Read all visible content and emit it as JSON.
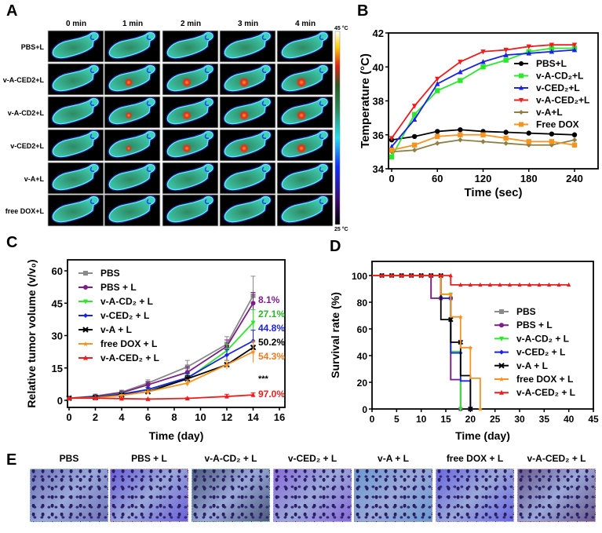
{
  "panel_labels": {
    "a": "A",
    "b": "B",
    "c": "C",
    "d": "D",
    "e": "E"
  },
  "panel_a": {
    "columns": [
      "0 min",
      "1 min",
      "2 min",
      "3 min",
      "4 min"
    ],
    "rows": [
      "PBS+L",
      "v-A-CED2+L",
      "v-A-CD2+L",
      "v-CED2+L",
      "v-A+L",
      "free DOX+L"
    ],
    "hotspot_intensity": [
      [
        0,
        0,
        0,
        0,
        0
      ],
      [
        0,
        0.7,
        0.85,
        0.95,
        1
      ],
      [
        0,
        0.5,
        0.8,
        0.9,
        0.9
      ],
      [
        0,
        0.4,
        0.75,
        0.85,
        0.9
      ],
      [
        0,
        0,
        0,
        0,
        0
      ],
      [
        0,
        0,
        0,
        0,
        0
      ]
    ],
    "colorbar_max": "45 °C",
    "colorbar_min": "25 °C"
  },
  "chart_data": [
    {
      "panel": "B",
      "type": "line",
      "xlabel": "Time (sec)",
      "ylabel": "Temperature (°C)",
      "xlim": [
        0,
        270
      ],
      "ylim": [
        34,
        42
      ],
      "xticks": [
        0,
        60,
        120,
        180,
        240
      ],
      "yticks": [
        34,
        36,
        38,
        40,
        42
      ],
      "legend": "right",
      "x": [
        0,
        30,
        60,
        90,
        120,
        150,
        180,
        210,
        240
      ],
      "series": [
        {
          "name": "PBS+L",
          "marker": "circle",
          "color": "#000000",
          "values": [
            35.7,
            35.9,
            36.2,
            36.3,
            36.2,
            36.15,
            36.1,
            36.05,
            36.0
          ]
        },
        {
          "name": "v-A-CD₂+L",
          "marker": "square",
          "color": "#2be82b",
          "values": [
            34.7,
            37.2,
            38.6,
            39.2,
            40.0,
            40.4,
            40.9,
            41.1,
            41.1
          ]
        },
        {
          "name": "v-CED₂+L",
          "marker": "triangle-up",
          "color": "#1a22e6",
          "values": [
            35.3,
            36.9,
            39.0,
            39.7,
            40.3,
            40.7,
            40.8,
            40.9,
            41.0
          ]
        },
        {
          "name": "v-A-CED₂+L",
          "marker": "triangle-down",
          "color": "#ee1c1c",
          "values": [
            35.8,
            37.7,
            39.3,
            40.3,
            40.9,
            41.0,
            41.2,
            41.3,
            41.3
          ]
        },
        {
          "name": "v-A+L",
          "marker": "diamond",
          "color": "#8e7f45",
          "values": [
            35.0,
            35.1,
            35.5,
            35.7,
            35.6,
            35.5,
            35.4,
            35.4,
            35.7
          ]
        },
        {
          "name": "Free DOX",
          "marker": "square",
          "color": "#f7931e",
          "values": [
            35.1,
            35.4,
            35.9,
            36.0,
            36.0,
            35.8,
            35.6,
            35.6,
            35.4
          ]
        }
      ]
    },
    {
      "panel": "C",
      "type": "line",
      "xlabel": "Time (day)",
      "ylabel": "Relative tumor volume (v/v₀)",
      "xlim": [
        0,
        16
      ],
      "ylim": [
        0,
        60
      ],
      "xticks": [
        0,
        2,
        4,
        6,
        8,
        10,
        12,
        14,
        16
      ],
      "yticks": [
        0,
        15,
        30,
        45,
        60
      ],
      "legend": "top-left",
      "x": [
        0,
        2,
        4,
        6,
        9,
        12,
        14
      ],
      "series": [
        {
          "name": "PBS",
          "marker": "square",
          "color": "#8a8a8a",
          "values": [
            1,
            2,
            3.8,
            8,
            15.5,
            26,
            48.5
          ],
          "error": [
            0,
            0.3,
            0.6,
            1.5,
            3,
            3.5,
            9
          ]
        },
        {
          "name": "PBS + L",
          "marker": "circle",
          "color": "#7b1f86",
          "values": [
            1,
            1.8,
            3.5,
            7.2,
            13,
            25,
            45
          ],
          "error": [
            0,
            0.3,
            0.5,
            1.2,
            2.5,
            3,
            5
          ]
        },
        {
          "name": "v-A-CD₂ + L",
          "marker": "triangle-down",
          "color": "#2be82b",
          "values": [
            1,
            1.5,
            3,
            5,
            10,
            23,
            36
          ],
          "error": [
            0,
            0.3,
            0.5,
            1,
            2,
            3,
            6
          ]
        },
        {
          "name": "v-CED₂ + L",
          "marker": "diamond",
          "color": "#1a22e6",
          "values": [
            1,
            1.5,
            2.8,
            5,
            10.5,
            21,
            27.5
          ],
          "error": [
            0,
            0.3,
            0.5,
            1,
            2,
            2.5,
            5
          ]
        },
        {
          "name": "v-A + L",
          "marker": "cross",
          "color": "#000000",
          "values": [
            1,
            1.3,
            2.5,
            4,
            10,
            16.5,
            24.5
          ],
          "error": [
            0,
            0.2,
            0.4,
            0.8,
            1.5,
            2,
            3
          ]
        },
        {
          "name": "free DOX + L",
          "marker": "star",
          "color": "#f7931e",
          "values": [
            1,
            1.2,
            2.3,
            4,
            8,
            16.5,
            22.5
          ],
          "error": [
            0,
            0.2,
            0.4,
            0.8,
            1.5,
            2,
            5
          ]
        },
        {
          "name": "v-A-CED₂ + L",
          "marker": "triangle-up",
          "color": "#ee1c1c",
          "values": [
            1,
            1,
            0.8,
            0.6,
            0.9,
            1.8,
            2.5
          ],
          "error": [
            0,
            0.2,
            0.2,
            0.2,
            0.3,
            1,
            1
          ]
        }
      ],
      "annotations": [
        {
          "text": "8.1%",
          "color": "#7b1f86"
        },
        {
          "text": "27.1%",
          "color": "#2bb52b"
        },
        {
          "text": "44.8%",
          "color": "#1a22e6"
        },
        {
          "text": "50.2%",
          "color": "#000000"
        },
        {
          "text": "54.3%",
          "color": "#f07a1e"
        },
        {
          "text": "***",
          "color": "#000000"
        },
        {
          "text": "97.0%",
          "color": "#ee1c1c"
        }
      ]
    },
    {
      "panel": "D",
      "type": "line",
      "xlabel": "Time (day)",
      "ylabel": "Survival rate (%)",
      "xlim": [
        0,
        45
      ],
      "ylim": [
        0,
        100
      ],
      "xticks": [
        0,
        5,
        10,
        15,
        20,
        25,
        30,
        35,
        40,
        45
      ],
      "yticks": [
        0,
        20,
        40,
        60,
        80,
        100
      ],
      "legend": "right",
      "series": [
        {
          "name": "PBS",
          "marker": "square",
          "color": "#8a8a8a",
          "steps": [
            [
              0,
              100
            ],
            [
              12,
              100
            ],
            [
              12,
              83
            ],
            [
              16,
              83
            ],
            [
              16,
              22
            ],
            [
              18,
              22
            ],
            [
              18,
              0
            ]
          ]
        },
        {
          "name": "PBS + L",
          "marker": "circle",
          "color": "#7b1f86",
          "steps": [
            [
              0,
              100
            ],
            [
              12,
              100
            ],
            [
              12,
              83
            ],
            [
              16,
              83
            ],
            [
              16,
              22
            ],
            [
              18,
              22
            ],
            [
              18,
              0
            ]
          ]
        },
        {
          "name": "v-A-CD₂ + L",
          "marker": "triangle-down",
          "color": "#2be82b",
          "steps": [
            [
              0,
              100
            ],
            [
              14,
              100
            ],
            [
              14,
              86
            ],
            [
              16,
              86
            ],
            [
              16,
              43
            ],
            [
              18,
              43
            ],
            [
              18,
              0
            ]
          ]
        },
        {
          "name": "v-CED₂ + L",
          "marker": "diamond",
          "color": "#1a22e6",
          "steps": [
            [
              0,
              100
            ],
            [
              14,
              100
            ],
            [
              14,
              83
            ],
            [
              16,
              83
            ],
            [
              16,
              42
            ],
            [
              18,
              42
            ],
            [
              18,
              21
            ],
            [
              20,
              21
            ],
            [
              20,
              0
            ]
          ]
        },
        {
          "name": "v-A + L",
          "marker": "cross",
          "color": "#000000",
          "steps": [
            [
              0,
              100
            ],
            [
              14,
              100
            ],
            [
              14,
              67
            ],
            [
              16,
              67
            ],
            [
              16,
              50
            ],
            [
              18,
              50
            ],
            [
              18,
              25
            ],
            [
              20,
              25
            ],
            [
              20,
              0
            ]
          ]
        },
        {
          "name": "free DOX + L",
          "marker": "star",
          "color": "#f7931e",
          "steps": [
            [
              0,
              100
            ],
            [
              14,
              100
            ],
            [
              14,
              86
            ],
            [
              16,
              86
            ],
            [
              16,
              69
            ],
            [
              18,
              69
            ],
            [
              18,
              46
            ],
            [
              20,
              46
            ],
            [
              20,
              23
            ],
            [
              22,
              23
            ],
            [
              22,
              0
            ]
          ]
        },
        {
          "name": "v-A-CED₂ + L",
          "marker": "triangle-up",
          "color": "#ee1c1c",
          "steps": [
            [
              0,
              100
            ],
            [
              16,
              100
            ],
            [
              16,
              93
            ],
            [
              40,
              93
            ]
          ]
        }
      ]
    }
  ],
  "panel_e": {
    "titles": [
      "PBS",
      "PBS + L",
      "v-A-CD₂ + L",
      "v-CED₂ + L",
      "v-A + L",
      "free DOX + L",
      "v-A-CED₂ + L"
    ],
    "tints": [
      "#6f74b8",
      "#6a5fd8",
      "#4a5a7a",
      "#8a6ad8",
      "#6a9ad0",
      "#6a68e0",
      "#6a5a8a"
    ],
    "borders": [
      "#9fd0d8",
      "#e8b8a0",
      "#a0d8b0",
      "#c0b0e8",
      "#a0a0a0",
      "#c8c8e8",
      "#f0a0a8"
    ]
  }
}
